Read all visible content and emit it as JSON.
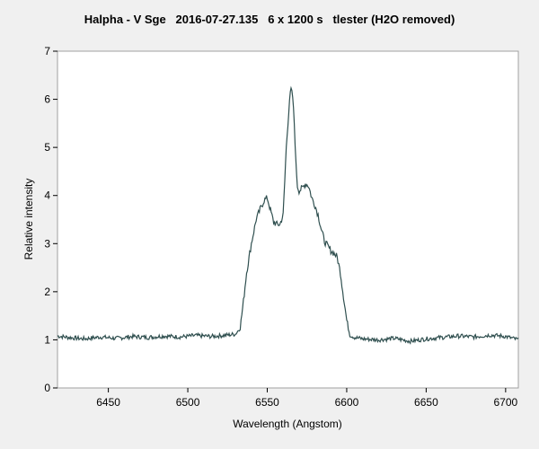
{
  "chart_data": {
    "type": "line",
    "title": "Halpha - V Sge   2016-07-27.135   6 x 1200 s   tlester (H2O removed)",
    "xlabel": "Wavelength (Angstom)",
    "ylabel": "Relative intensity",
    "xlim": [
      6418,
      6708
    ],
    "ylim": [
      0,
      7
    ],
    "xticks": [
      6450,
      6500,
      6550,
      6600,
      6650,
      6700
    ],
    "yticks": [
      0,
      1,
      2,
      3,
      4,
      5,
      6,
      7
    ],
    "grid": false,
    "line_color": "#2f4f4f",
    "series": [
      {
        "x": [
          6418,
          6425,
          6435,
          6445,
          6455,
          6465,
          6475,
          6485,
          6495,
          6505,
          6515,
          6525,
          6530,
          6533,
          6535,
          6537,
          6540,
          6543,
          6546,
          6548,
          6550,
          6552,
          6554,
          6556,
          6558,
          6560,
          6561,
          6562,
          6563,
          6564,
          6565,
          6566,
          6567,
          6568,
          6569,
          6570,
          6572,
          6574,
          6576,
          6578,
          6580,
          6582,
          6584,
          6586,
          6588,
          6590,
          6592,
          6594,
          6596,
          6598,
          6600,
          6602,
          6605,
          6610,
          6620,
          6630,
          6640,
          6650,
          6660,
          6670,
          6680,
          6690,
          6700,
          6708
        ],
        "y": [
          1.08,
          1.05,
          1.02,
          1.06,
          1.03,
          1.07,
          1.05,
          1.08,
          1.06,
          1.09,
          1.07,
          1.1,
          1.12,
          1.25,
          1.8,
          2.4,
          3.0,
          3.5,
          3.75,
          3.9,
          3.95,
          3.7,
          3.45,
          3.4,
          3.4,
          3.6,
          4.3,
          5.0,
          5.5,
          6.0,
          6.2,
          6.05,
          5.5,
          4.7,
          4.2,
          4.1,
          4.15,
          4.25,
          4.2,
          3.95,
          3.8,
          3.6,
          3.3,
          3.05,
          2.95,
          2.85,
          2.8,
          2.72,
          2.4,
          1.9,
          1.4,
          1.1,
          1.05,
          1.02,
          1.0,
          1.03,
          0.97,
          1.02,
          1.05,
          1.08,
          1.06,
          1.1,
          1.07,
          1.0
        ]
      }
    ]
  }
}
